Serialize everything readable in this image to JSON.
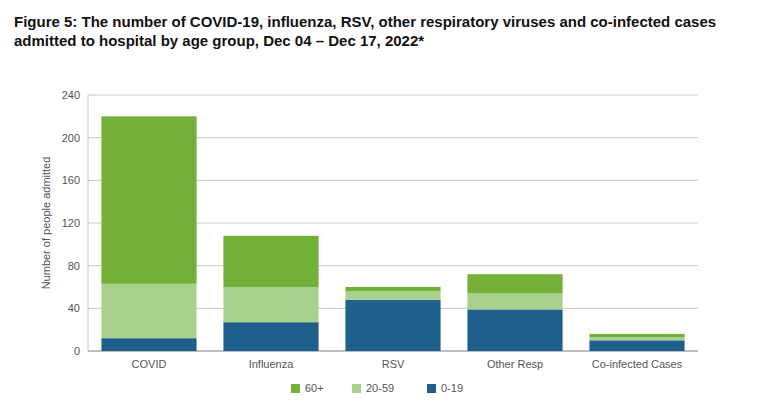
{
  "chart_data": {
    "type": "bar",
    "stacked": true,
    "title": "Figure 5: The number of COVID-19, influenza, RSV, other respiratory viruses and co-infected cases admitted to hospital by age group, Dec 04 – Dec 17, 2022*",
    "y_label": "Number of people admitted",
    "categories": [
      "COVID",
      "Influenza",
      "RSV",
      "Other Resp",
      "Co-infected Cases"
    ],
    "series": [
      {
        "name": "0-19",
        "color": "#1f5f8b",
        "values": [
          12,
          27,
          48,
          39,
          10
        ]
      },
      {
        "name": "20-59",
        "color": "#a9d18e",
        "values": [
          51,
          33,
          8,
          15,
          3
        ]
      },
      {
        "name": "60+",
        "color": "#72b038",
        "values": [
          157,
          48,
          4,
          18,
          3
        ]
      }
    ],
    "ylim": [
      0,
      240
    ],
    "yticks": [
      0,
      40,
      80,
      120,
      160,
      200,
      240
    ],
    "grid": true,
    "legend": "bottom"
  }
}
